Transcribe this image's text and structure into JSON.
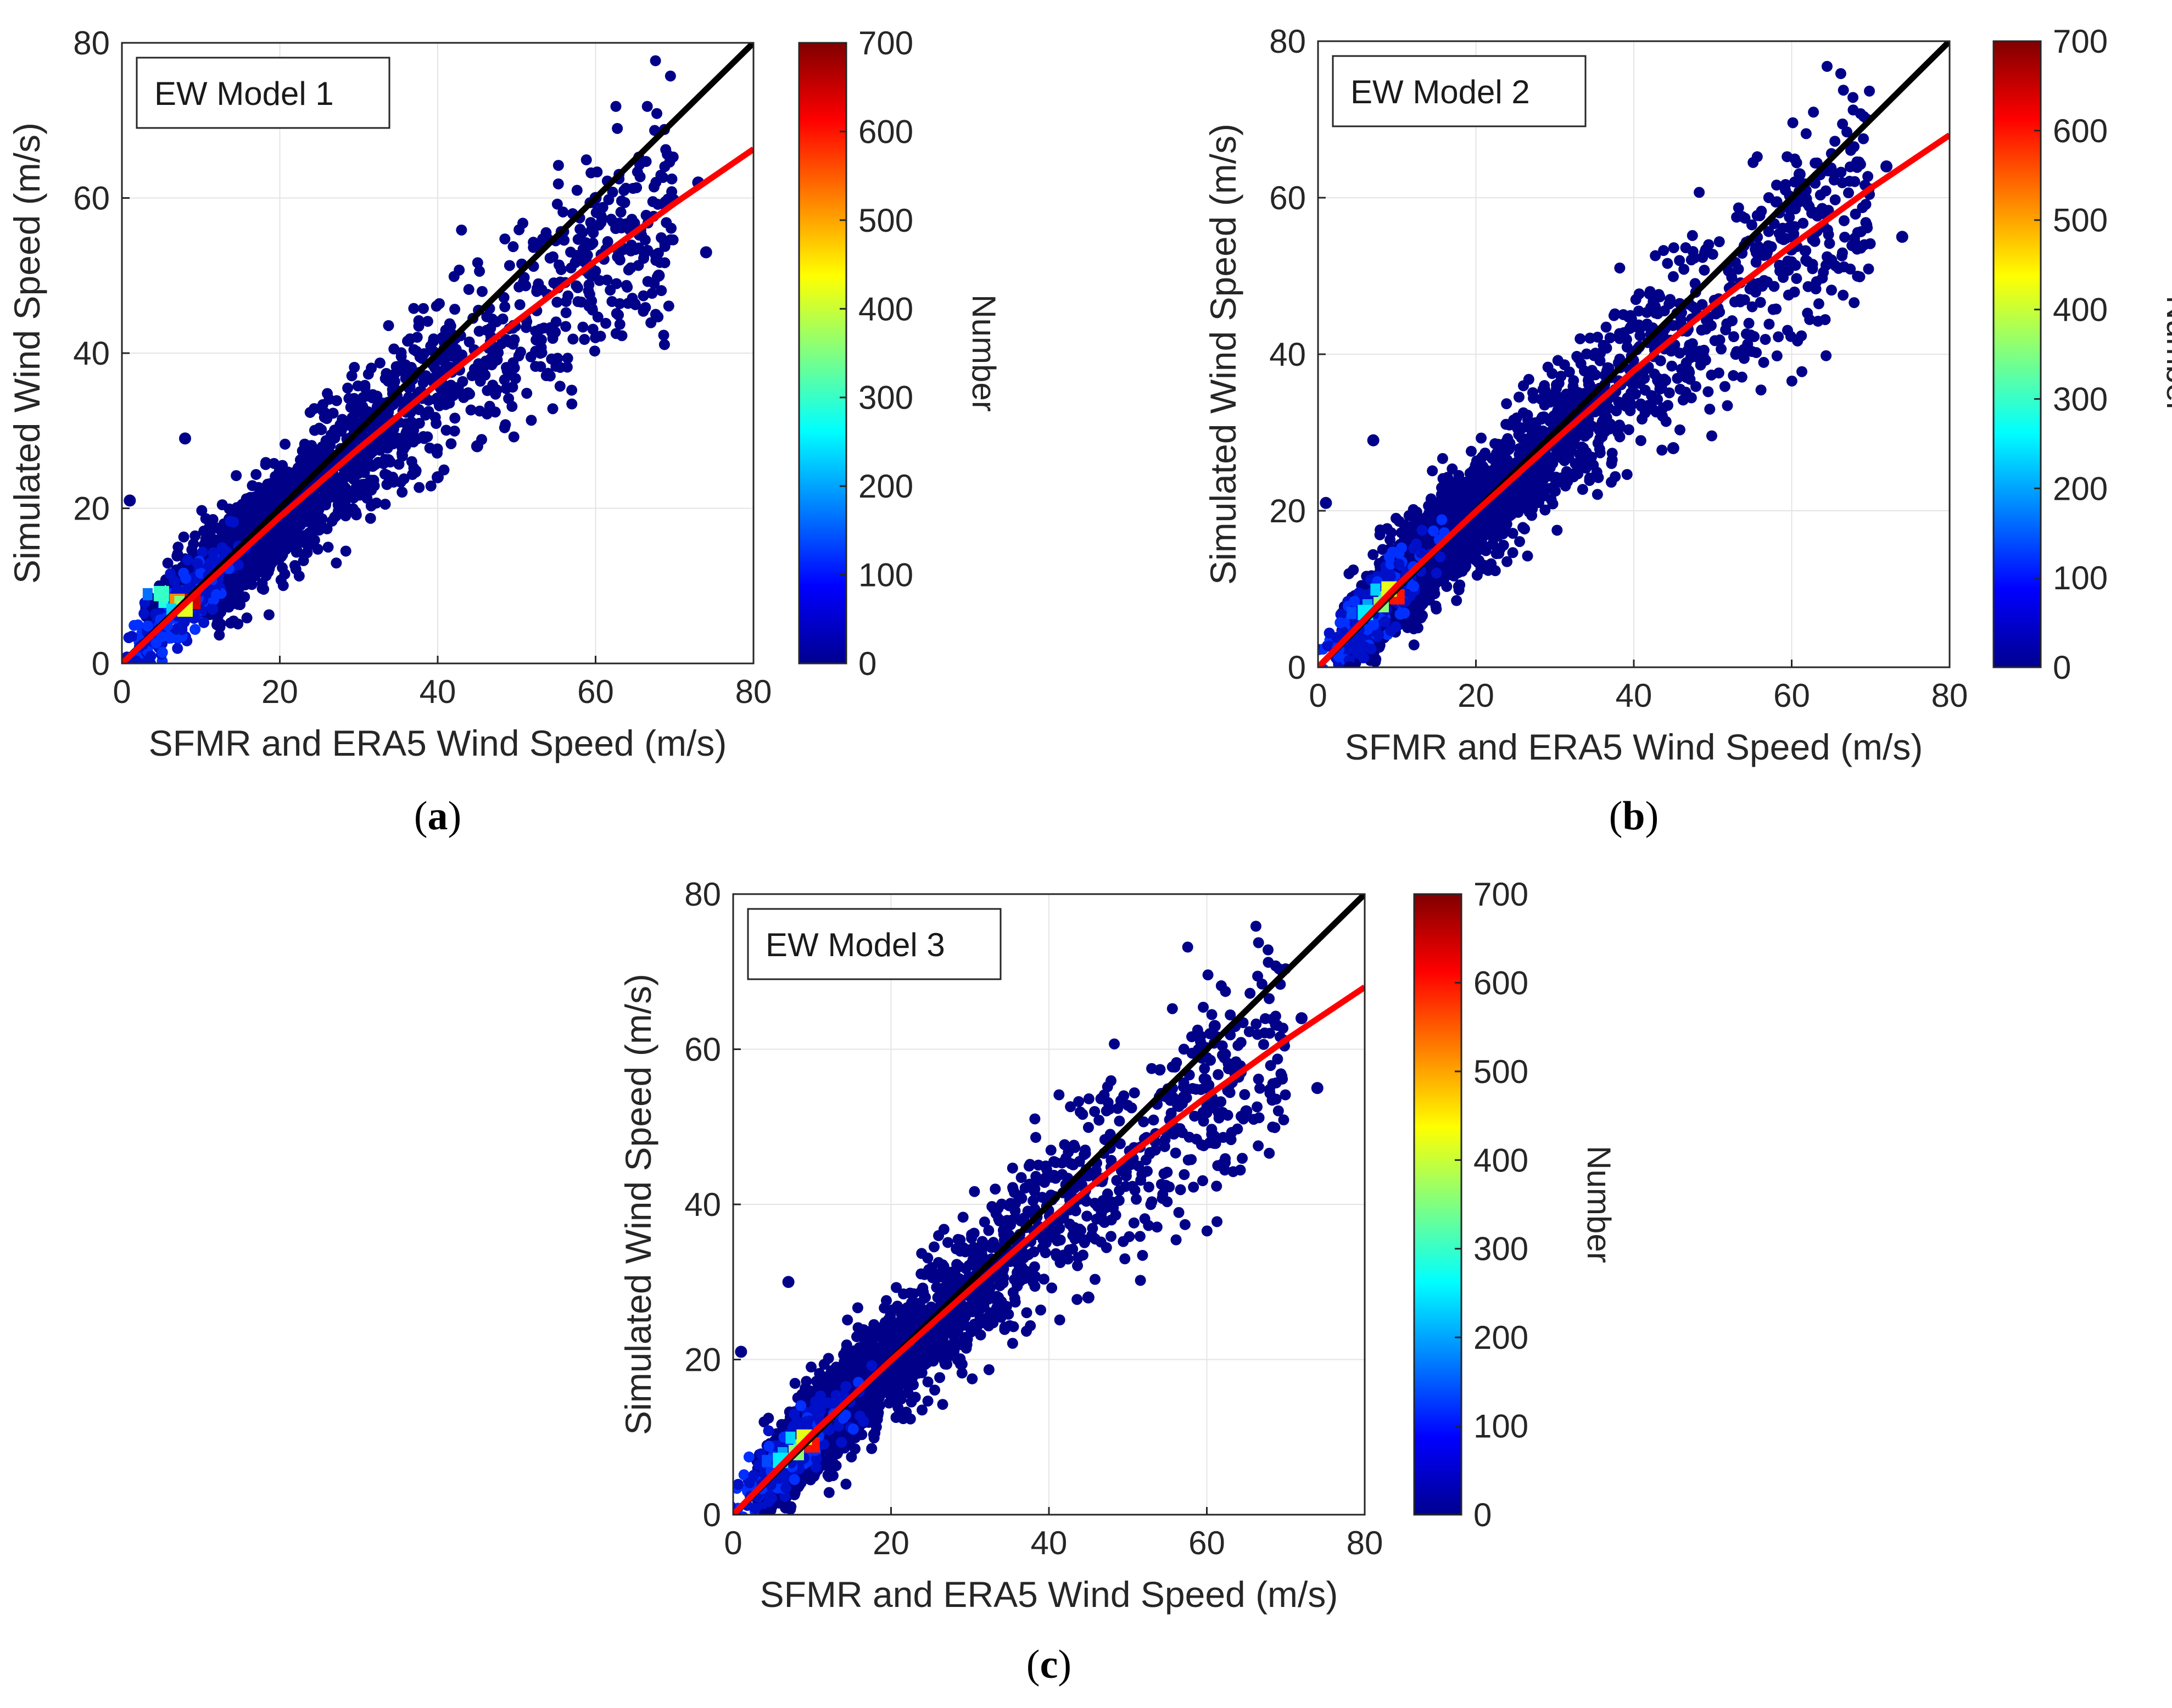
{
  "chart_data": [
    {
      "type": "scatter",
      "subtype": "density-scatter",
      "legend_text": "EW Model 1",
      "caption_letter": "a",
      "xlabel": "SFMR and ERA5 Wind Speed (m/s)",
      "ylabel": "Simulated Wind Speed (m/s)",
      "xlim": [
        0,
        80
      ],
      "ylim": [
        0,
        80
      ],
      "xticks": [
        0,
        20,
        40,
        60,
        80
      ],
      "yticks": [
        0,
        20,
        40,
        60,
        80
      ],
      "grid": true,
      "colorbar": {
        "label": "Number",
        "min": 0,
        "max": 700,
        "ticks": [
          0,
          100,
          200,
          300,
          400,
          500,
          600,
          700
        ],
        "colormap": "jet"
      },
      "reference_line": {
        "name": "1:1 line",
        "color": "#000000",
        "x": [
          0,
          80
        ],
        "y": [
          0,
          80
        ]
      },
      "fit_line": {
        "name": "fit",
        "color": "#ff0000",
        "x": [
          0,
          10,
          20,
          30,
          40,
          50,
          60,
          70,
          80
        ],
        "y": [
          0,
          9.6,
          18.9,
          27.7,
          36.1,
          44.1,
          51.9,
          59.3,
          66.3
        ]
      },
      "hotspots": [
        {
          "x": 7,
          "y": 8,
          "count": 520
        },
        {
          "x": 9,
          "y": 8,
          "count": 640
        },
        {
          "x": 5,
          "y": 9,
          "count": 300
        },
        {
          "x": 8,
          "y": 7,
          "count": 420
        }
      ],
      "notable_points": [
        {
          "x": 1,
          "y": 21
        },
        {
          "x": 8,
          "y": 29
        },
        {
          "x": 40,
          "y": 24
        },
        {
          "x": 45,
          "y": 28
        },
        {
          "x": 60,
          "y": 60
        },
        {
          "x": 73,
          "y": 62
        },
        {
          "x": 74,
          "y": 53
        },
        {
          "x": 68,
          "y": 50
        }
      ]
    },
    {
      "type": "scatter",
      "subtype": "density-scatter",
      "legend_text": "EW Model 2",
      "caption_letter": "b",
      "xlabel": "SFMR and ERA5 Wind Speed (m/s)",
      "ylabel": "Simulated Wind Speed (m/s)",
      "xlim": [
        0,
        80
      ],
      "ylim": [
        0,
        80
      ],
      "xticks": [
        0,
        20,
        40,
        60,
        80
      ],
      "yticks": [
        0,
        20,
        40,
        60,
        80
      ],
      "grid": true,
      "colorbar": {
        "label": "Number",
        "min": 0,
        "max": 700,
        "ticks": [
          0,
          100,
          200,
          300,
          400,
          500,
          600,
          700
        ],
        "colormap": "jet"
      },
      "reference_line": {
        "name": "1:1 line",
        "color": "#000000",
        "x": [
          0,
          80
        ],
        "y": [
          0,
          80
        ]
      },
      "fit_line": {
        "name": "fit",
        "color": "#ff0000",
        "x": [
          0,
          10,
          20,
          30,
          40,
          50,
          60,
          70,
          80
        ],
        "y": [
          0,
          10.4,
          19.9,
          29.0,
          37.9,
          46.2,
          53.9,
          61.2,
          68.0
        ]
      },
      "hotspots": [
        {
          "x": 8,
          "y": 8,
          "count": 360
        },
        {
          "x": 10,
          "y": 9,
          "count": 600
        },
        {
          "x": 6,
          "y": 7,
          "count": 250
        },
        {
          "x": 9,
          "y": 10,
          "count": 420
        }
      ],
      "notable_points": [
        {
          "x": 1,
          "y": 21
        },
        {
          "x": 7,
          "y": 29
        },
        {
          "x": 45,
          "y": 28
        },
        {
          "x": 61,
          "y": 63
        },
        {
          "x": 72,
          "y": 64
        },
        {
          "x": 74,
          "y": 55
        },
        {
          "x": 65,
          "y": 52
        },
        {
          "x": 4,
          "y": 0
        }
      ]
    },
    {
      "type": "scatter",
      "subtype": "density-scatter",
      "legend_text": "EW Model 3",
      "caption_letter": "c",
      "xlabel": "SFMR and ERA5 Wind Speed (m/s)",
      "ylabel": "Simulated Wind Speed (m/s)",
      "xlim": [
        0,
        80
      ],
      "ylim": [
        0,
        80
      ],
      "xticks": [
        0,
        20,
        40,
        60,
        80
      ],
      "yticks": [
        0,
        20,
        40,
        60,
        80
      ],
      "grid": true,
      "colorbar": {
        "label": "Number",
        "min": 0,
        "max": 700,
        "ticks": [
          0,
          100,
          200,
          300,
          400,
          500,
          600,
          700
        ],
        "colormap": "jet"
      },
      "reference_line": {
        "name": "1:1 line",
        "color": "#000000",
        "x": [
          0,
          80
        ],
        "y": [
          0,
          80
        ]
      },
      "fit_line": {
        "name": "fit",
        "color": "#ff0000",
        "x": [
          0,
          10,
          20,
          30,
          40,
          50,
          60,
          70,
          80
        ],
        "y": [
          0,
          10.4,
          19.9,
          29.0,
          37.9,
          46.2,
          53.9,
          61.2,
          68.0
        ]
      },
      "hotspots": [
        {
          "x": 8,
          "y": 8,
          "count": 360
        },
        {
          "x": 10,
          "y": 9,
          "count": 600
        },
        {
          "x": 6,
          "y": 7,
          "count": 250
        },
        {
          "x": 9,
          "y": 10,
          "count": 420
        }
      ],
      "notable_points": [
        {
          "x": 1,
          "y": 21
        },
        {
          "x": 7,
          "y": 30
        },
        {
          "x": 45,
          "y": 28
        },
        {
          "x": 61,
          "y": 63
        },
        {
          "x": 72,
          "y": 64
        },
        {
          "x": 74,
          "y": 55
        },
        {
          "x": 65,
          "y": 52
        },
        {
          "x": 4,
          "y": 0
        }
      ]
    }
  ]
}
